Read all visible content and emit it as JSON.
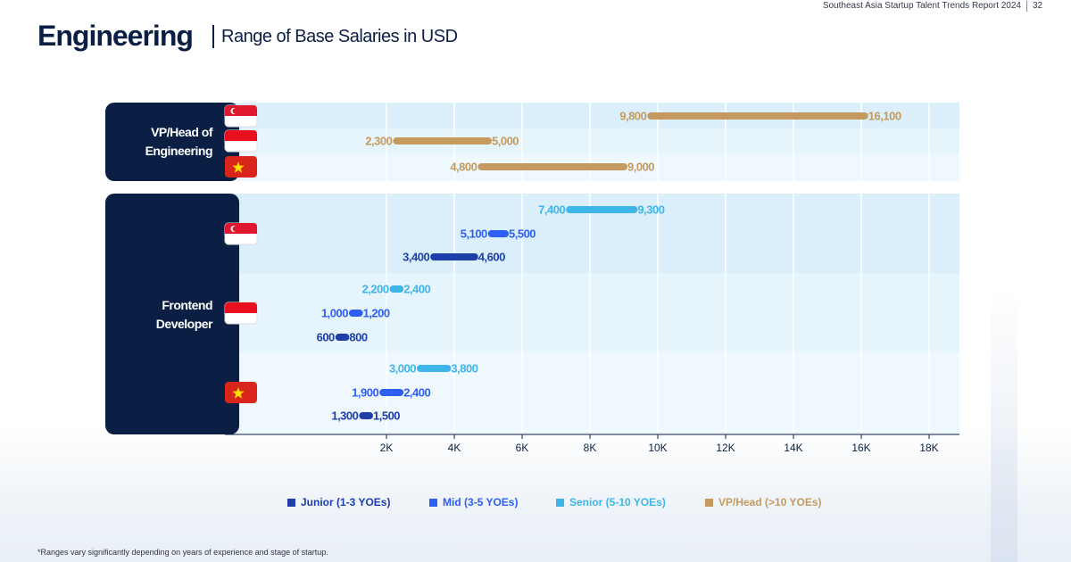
{
  "header": {
    "report": "Southeast Asia Startup Talent Trends Report 2024",
    "page": "32",
    "title": "Engineering",
    "subtitle": "Range of Base Salaries in USD"
  },
  "footnote": "*Ranges vary significantly depending on years of experience and stage of startup.",
  "colors": {
    "junior": "#1e3ea8",
    "mid": "#2d5ff2",
    "senior": "#3fb6ea",
    "vp": "#c49a5e",
    "navy": "#0b1f45"
  },
  "chart_data": {
    "type": "range-bar",
    "xlim": [
      0,
      18000
    ],
    "xticks": [
      2000,
      4000,
      6000,
      8000,
      10000,
      12000,
      14000,
      16000,
      18000
    ],
    "xtick_labels": [
      "2K",
      "4K",
      "6K",
      "8K",
      "10K",
      "12K",
      "14K",
      "16K",
      "18K"
    ],
    "grid": true,
    "legend": [
      {
        "key": "junior",
        "label": "Junior (1-3 YOEs)"
      },
      {
        "key": "mid",
        "label": "Mid (3-5 YOEs)"
      },
      {
        "key": "senior",
        "label": "Senior (5-10 YOEs)"
      },
      {
        "key": "vp",
        "label": "VP/Head (>10 YOEs)"
      }
    ],
    "legend_position": "bottom",
    "groups": [
      {
        "role": "VP/Head of Engineering",
        "countries": [
          {
            "flag": "singapore",
            "ranges": [
              {
                "level": "vp",
                "min": 9800,
                "max": 16100,
                "min_label": "9,800",
                "max_label": "16,100"
              }
            ]
          },
          {
            "flag": "indonesia",
            "ranges": [
              {
                "level": "vp",
                "min": 2300,
                "max": 5000,
                "min_label": "2,300",
                "max_label": "5,000"
              }
            ]
          },
          {
            "flag": "vietnam",
            "ranges": [
              {
                "level": "vp",
                "min": 4800,
                "max": 9000,
                "min_label": "4,800",
                "max_label": "9,000"
              }
            ]
          }
        ]
      },
      {
        "role": "Frontend Developer",
        "countries": [
          {
            "flag": "singapore",
            "ranges": [
              {
                "level": "senior",
                "min": 7400,
                "max": 9300,
                "min_label": "7,400",
                "max_label": "9,300"
              },
              {
                "level": "mid",
                "min": 5100,
                "max": 5500,
                "min_label": "5,100",
                "max_label": "5,500"
              },
              {
                "level": "junior",
                "min": 3400,
                "max": 4600,
                "min_label": "3,400",
                "max_label": "4,600"
              }
            ]
          },
          {
            "flag": "indonesia",
            "ranges": [
              {
                "level": "senior",
                "min": 2200,
                "max": 2400,
                "min_label": "2,200",
                "max_label": "2,400"
              },
              {
                "level": "mid",
                "min": 1000,
                "max": 1200,
                "min_label": "1,000",
                "max_label": "1,200"
              },
              {
                "level": "junior",
                "min": 600,
                "max": 800,
                "min_label": "600",
                "max_label": "800"
              }
            ]
          },
          {
            "flag": "vietnam",
            "ranges": [
              {
                "level": "senior",
                "min": 3000,
                "max": 3800,
                "min_label": "3,000",
                "max_label": "3,800"
              },
              {
                "level": "mid",
                "min": 1900,
                "max": 2400,
                "min_label": "1,900",
                "max_label": "2,400"
              },
              {
                "level": "junior",
                "min": 1300,
                "max": 1500,
                "min_label": "1,300",
                "max_label": "1,500"
              }
            ]
          }
        ]
      }
    ]
  }
}
